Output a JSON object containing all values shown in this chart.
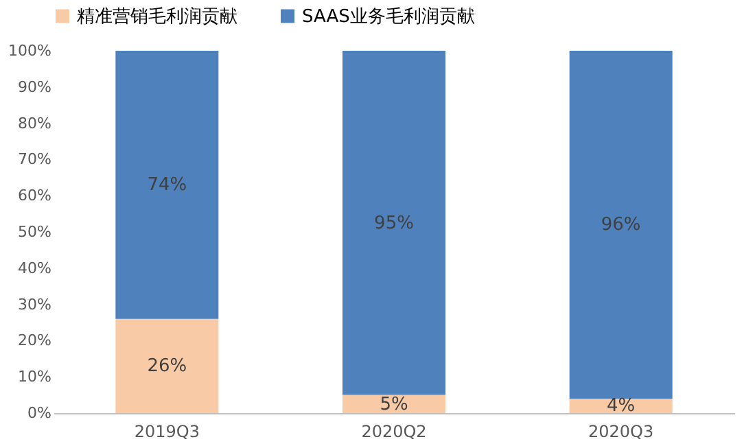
{
  "chart_data": {
    "type": "bar",
    "stacked": true,
    "categories": [
      "2019Q3",
      "2020Q2",
      "2020Q3"
    ],
    "series": [
      {
        "name": "精准营销毛利润贡献",
        "color": "#f8cba6",
        "values": [
          26,
          5,
          4
        ],
        "value_labels": [
          "26%",
          "5%",
          "4%"
        ]
      },
      {
        "name": "SAAS业务毛利润贡献",
        "color": "#4f81bd",
        "values": [
          74,
          95,
          96
        ],
        "value_labels": [
          "74%",
          "95%",
          "96%"
        ]
      }
    ],
    "ylim": [
      0,
      100
    ],
    "yticks": [
      {
        "value": 0,
        "label": "0%"
      },
      {
        "value": 10,
        "label": "10%"
      },
      {
        "value": 20,
        "label": "20%"
      },
      {
        "value": 30,
        "label": "30%"
      },
      {
        "value": 40,
        "label": "40%"
      },
      {
        "value": 50,
        "label": "50%"
      },
      {
        "value": 60,
        "label": "60%"
      },
      {
        "value": 70,
        "label": "70%"
      },
      {
        "value": 80,
        "label": "80%"
      },
      {
        "value": 90,
        "label": "90%"
      },
      {
        "value": 100,
        "label": "100%"
      }
    ],
    "legend": "top",
    "grid": false
  }
}
